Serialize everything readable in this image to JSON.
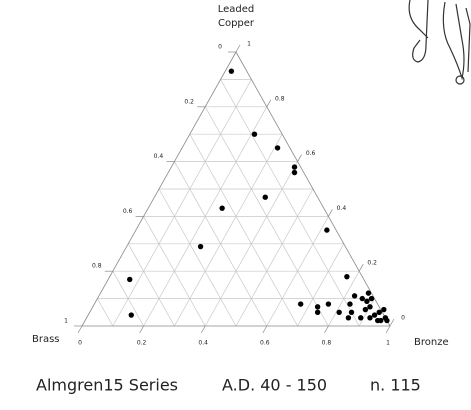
{
  "chart_data": {
    "type": "ternary",
    "caption": [
      "Almgren15 Series",
      "A.D. 40 - 150",
      "n. 115"
    ],
    "top_label": [
      "Leaded",
      "Copper"
    ],
    "left_label": "Brass",
    "right_label": "Bronze",
    "bottom_ticks": [
      0,
      0.2,
      0.4,
      0.6,
      0.8,
      1
    ],
    "left_ticks": [
      0,
      0.2,
      0.4,
      0.6,
      0.8,
      1
    ],
    "right_ticks": [
      0,
      0.2,
      0.4,
      0.6,
      0.8,
      1
    ],
    "grid_values": [
      0.1,
      0.2,
      0.3,
      0.4,
      0.5,
      0.6,
      0.7,
      0.8,
      0.9
    ],
    "color": "#000000",
    "bronze": [
      0.02,
      0.21,
      0.31,
      0.41,
      0.4,
      0.36,
      0.24,
      0.24,
      0.62,
      0.07,
      0.14,
      0.77,
      0.67,
      0.73,
      0.76,
      0.74,
      0.81,
      0.83,
      0.83,
      0.86,
      0.87,
      0.89,
      0.9,
      0.93,
      0.94,
      0.96,
      0.97,
      0.98,
      0.95,
      0.92,
      0.89,
      0.85,
      0.85,
      0.88,
      0.89,
      0.95
    ],
    "leaded_copper": [
      0.93,
      0.7,
      0.65,
      0.56,
      0.58,
      0.47,
      0.43,
      0.29,
      0.35,
      0.17,
      0.04,
      0.18,
      0.08,
      0.07,
      0.08,
      0.05,
      0.05,
      0.08,
      0.11,
      0.1,
      0.12,
      0.06,
      0.07,
      0.04,
      0.05,
      0.02,
      0.03,
      0.02,
      0.02,
      0.03,
      0.03,
      0.03,
      0.05,
      0.09,
      0.1,
      0.06
    ]
  }
}
